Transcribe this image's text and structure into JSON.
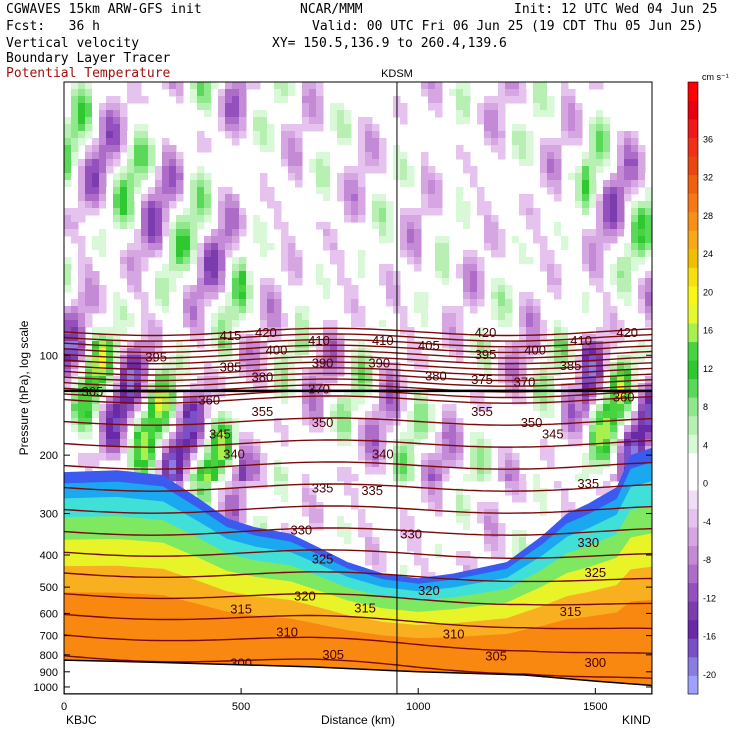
{
  "header": {
    "model": "CGWAVES 15km ARW-GFS init",
    "org": "NCAR/MMM",
    "init": "Init: 12 UTC Wed 04 Jun 25",
    "fcst": "Fcst:   36 h",
    "valid": "Valid: 00 UTC Fri 06 Jun 25 (19 CDT Thu 05 Jun 25)",
    "field1": "Vertical velocity",
    "field2": "Boundary Layer Tracer",
    "field3": "Potential Temperature",
    "xy": "XY= 150.5,136.9 to 260.4,139.6"
  },
  "chart_data": {
    "type": "heatmap",
    "title": "",
    "xlabel": "Distance (km)",
    "ylabel": "Pressure (hPa), log scale",
    "xlim": [
      0,
      1660
    ],
    "ylim": [
      1050,
      15
    ],
    "y_scale": "log",
    "x_ticks": [
      "0",
      "500",
      "1000",
      "1500"
    ],
    "y_ticks": [
      "100",
      "200",
      "300",
      "400",
      "500",
      "600",
      "700",
      "800",
      "900",
      "1000"
    ],
    "start_label": "KBJC",
    "end_label": "KIND",
    "marker_label": "KDSM",
    "marker_x": 940,
    "colorbar": {
      "unit": "cm s⁻¹",
      "levels": [
        -22,
        -20,
        -18,
        -16,
        -14,
        -12,
        -10,
        -8,
        -6,
        -4,
        -2,
        0,
        2,
        4,
        6,
        8,
        10,
        12,
        14,
        16,
        18,
        20,
        22,
        24,
        26,
        28,
        30,
        32,
        34,
        36,
        38,
        40,
        42
      ],
      "labels": [
        "-20",
        "-16",
        "-12",
        "-8",
        "-4",
        "0",
        "4",
        "8",
        "12",
        "16",
        "20",
        "24",
        "28",
        "32",
        "36"
      ],
      "colors": [
        "#a0a0ff",
        "#8a7ce0",
        "#7a50c8",
        "#6a2aa8",
        "#7b3cae",
        "#9450bc",
        "#ad6cc8",
        "#c48ad6",
        "#d6a6e2",
        "#e6c2ee",
        "#f2ddf6",
        "#ffffff",
        "#ffffff",
        "#d8f8d8",
        "#b8f0b4",
        "#90e88c",
        "#5ad85a",
        "#30c830",
        "#48d440",
        "#a8f050",
        "#e8f830",
        "#f8f818",
        "#f8e010",
        "#f0c000",
        "#f8a818",
        "#f89018",
        "#f87818",
        "#f06010",
        "#e84810",
        "#f03018",
        "#f01818",
        "#e80010",
        "#ff0000"
      ]
    },
    "theta_isentropes": {
      "unit": "K",
      "levels": [
        300,
        305,
        310,
        315,
        320,
        325,
        330,
        335,
        340,
        345,
        350,
        355,
        360,
        365,
        370,
        375,
        380,
        385,
        390,
        395,
        400,
        405,
        410,
        415,
        420
      ],
      "labels_shown": [
        {
          "v": "300",
          "x": 500,
          "p": 845
        },
        {
          "v": "300",
          "x": 1500,
          "p": 840
        },
        {
          "v": "305",
          "x": 760,
          "p": 795
        },
        {
          "v": "305",
          "x": 1220,
          "p": 805
        },
        {
          "v": "310",
          "x": 630,
          "p": 680
        },
        {
          "v": "310",
          "x": 1100,
          "p": 690
        },
        {
          "v": "315",
          "x": 500,
          "p": 580
        },
        {
          "v": "315",
          "x": 850,
          "p": 575
        },
        {
          "v": "315",
          "x": 1430,
          "p": 590
        },
        {
          "v": "320",
          "x": 680,
          "p": 530
        },
        {
          "v": "320",
          "x": 1030,
          "p": 510
        },
        {
          "v": "325",
          "x": 730,
          "p": 410
        },
        {
          "v": "325",
          "x": 1500,
          "p": 450
        },
        {
          "v": "330",
          "x": 670,
          "p": 335
        },
        {
          "v": "330",
          "x": 980,
          "p": 345
        },
        {
          "v": "330",
          "x": 1480,
          "p": 365
        },
        {
          "v": "335",
          "x": 730,
          "p": 250
        },
        {
          "v": "335",
          "x": 870,
          "p": 255
        },
        {
          "v": "335",
          "x": 1480,
          "p": 243
        },
        {
          "v": "340",
          "x": 480,
          "p": 198
        },
        {
          "v": "340",
          "x": 900,
          "p": 198
        },
        {
          "v": "345",
          "x": 440,
          "p": 172
        },
        {
          "v": "345",
          "x": 1380,
          "p": 172
        },
        {
          "v": "350",
          "x": 730,
          "p": 159
        },
        {
          "v": "350",
          "x": 1320,
          "p": 159
        },
        {
          "v": "355",
          "x": 560,
          "p": 147
        },
        {
          "v": "355",
          "x": 1180,
          "p": 147
        },
        {
          "v": "360",
          "x": 410,
          "p": 136
        },
        {
          "v": "360",
          "x": 1580,
          "p": 133
        },
        {
          "v": "365",
          "x": 80,
          "p": 128
        },
        {
          "v": "370",
          "x": 720,
          "p": 126
        },
        {
          "v": "370",
          "x": 1300,
          "p": 120
        },
        {
          "v": "375",
          "x": 1180,
          "p": 118
        },
        {
          "v": "380",
          "x": 560,
          "p": 116
        },
        {
          "v": "380",
          "x": 1050,
          "p": 115
        },
        {
          "v": "385",
          "x": 470,
          "p": 108
        },
        {
          "v": "385",
          "x": 1430,
          "p": 107
        },
        {
          "v": "390",
          "x": 730,
          "p": 105
        },
        {
          "v": "390",
          "x": 890,
          "p": 105
        },
        {
          "v": "395",
          "x": 260,
          "p": 101
        },
        {
          "v": "395",
          "x": 1190,
          "p": 99
        },
        {
          "v": "400",
          "x": 600,
          "p": 96
        },
        {
          "v": "400",
          "x": 1330,
          "p": 96
        },
        {
          "v": "405",
          "x": 1030,
          "p": 93
        },
        {
          "v": "410",
          "x": 720,
          "p": 90
        },
        {
          "v": "410",
          "x": 900,
          "p": 90
        },
        {
          "v": "410",
          "x": 1460,
          "p": 90
        },
        {
          "v": "415",
          "x": 470,
          "p": 87
        },
        {
          "v": "420",
          "x": 570,
          "p": 85
        },
        {
          "v": "420",
          "x": 1190,
          "p": 85
        },
        {
          "v": "420",
          "x": 1590,
          "p": 85
        }
      ]
    },
    "tropopause_p": 128,
    "boundary_layer_top": [
      {
        "x": 0,
        "p": 225
      },
      {
        "x": 150,
        "p": 222
      },
      {
        "x": 280,
        "p": 230
      },
      {
        "x": 380,
        "p": 270
      },
      {
        "x": 460,
        "p": 310
      },
      {
        "x": 540,
        "p": 330
      },
      {
        "x": 640,
        "p": 345
      },
      {
        "x": 720,
        "p": 380
      },
      {
        "x": 800,
        "p": 420
      },
      {
        "x": 900,
        "p": 455
      },
      {
        "x": 1000,
        "p": 470
      },
      {
        "x": 1100,
        "p": 455
      },
      {
        "x": 1250,
        "p": 420
      },
      {
        "x": 1350,
        "p": 350
      },
      {
        "x": 1420,
        "p": 300
      },
      {
        "x": 1480,
        "p": 280
      },
      {
        "x": 1560,
        "p": 250
      },
      {
        "x": 1600,
        "p": 200
      },
      {
        "x": 1660,
        "p": 190
      }
    ],
    "terrain_p": [
      {
        "x": 0,
        "p": 830
      },
      {
        "x": 300,
        "p": 845
      },
      {
        "x": 700,
        "p": 870
      },
      {
        "x": 1000,
        "p": 900
      },
      {
        "x": 1300,
        "p": 920
      },
      {
        "x": 1500,
        "p": 960
      },
      {
        "x": 1660,
        "p": 990
      }
    ]
  }
}
